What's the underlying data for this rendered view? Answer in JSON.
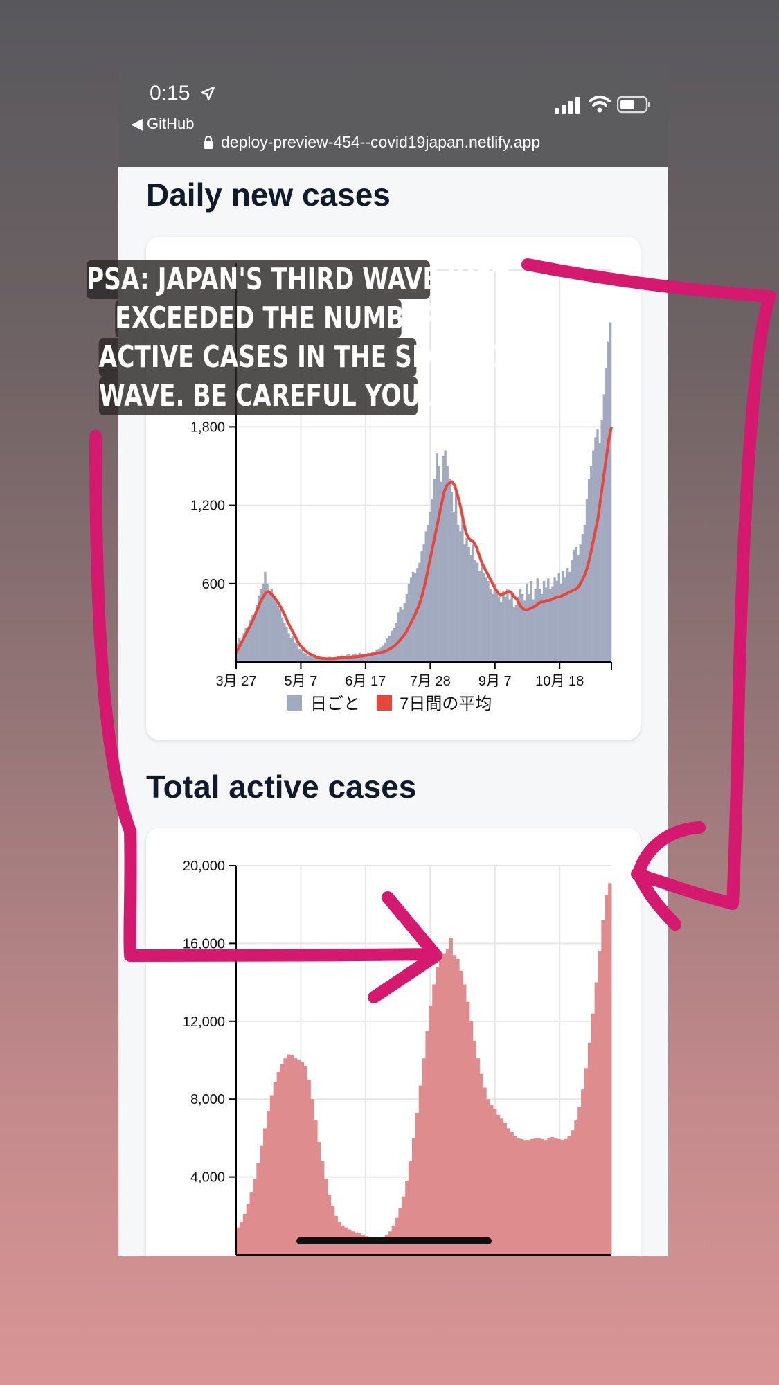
{
  "status_bar": {
    "time": "0:15",
    "back_label": "◀ GitHub",
    "url": "deploy-preview-454--covid19japan.netlify.app",
    "icons": [
      "location-arrow-icon",
      "signal-icon",
      "wifi-icon",
      "battery-icon",
      "lock-icon"
    ]
  },
  "sections": {
    "daily_title": "Daily new cases",
    "active_title": "Total active cases"
  },
  "psa": {
    "lines": [
      "PSA: JAPAN'S THIRD WAVE JUST",
      "EXCEEDED THE NUMBER OF",
      "ACTIVE CASES IN THE SECOND",
      "WAVE. BE CAREFUL YOU ALL."
    ]
  },
  "colors": {
    "bars_daily": "#a2aac0",
    "avg_line": "#e8453c",
    "active_area": "#df8c8e",
    "annotation": "#d4196f"
  },
  "chart_data": [
    {
      "type": "bar",
      "title": "",
      "xlabel": "",
      "ylabel": "",
      "ylim": [
        0,
        3000
      ],
      "y_ticks": [
        "600",
        "1,200",
        "1,800"
      ],
      "x_ticks": [
        "3月 27",
        "5月 7",
        "6月 17",
        "7月 28",
        "9月 7",
        "10月 18"
      ],
      "grid": true,
      "legend_position": "bottom",
      "series": [
        {
          "name": "日ごと",
          "values": [
            140,
            180,
            160,
            220,
            260,
            240,
            320,
            360,
            340,
            440,
            510,
            560,
            600,
            690,
            600,
            540,
            560,
            500,
            470,
            430,
            400,
            340,
            300,
            270,
            220,
            180,
            200,
            150,
            140,
            100,
            90,
            70,
            60,
            50,
            55,
            45,
            40,
            45,
            35,
            30,
            28,
            32,
            30,
            40,
            35,
            30,
            38,
            45,
            42,
            50,
            45,
            55,
            60,
            50,
            58,
            65,
            55,
            70,
            62,
            60,
            55,
            70,
            68,
            75,
            80,
            90,
            100,
            110,
            125,
            150,
            180,
            200,
            240,
            260,
            300,
            380,
            420,
            400,
            450,
            520,
            600,
            650,
            690,
            680,
            720,
            760,
            850,
            900,
            1000,
            1050,
            1150,
            1250,
            1400,
            1600,
            1500,
            1380,
            1580,
            1620,
            1500,
            1400,
            1300,
            1150,
            1300,
            1050,
            1000,
            1100,
            900,
            950,
            880,
            820,
            900,
            780,
            760,
            700,
            760,
            680,
            650,
            620,
            560,
            520,
            600,
            540,
            500,
            460,
            540,
            500,
            560,
            480,
            520,
            420,
            440,
            500,
            560,
            520,
            470,
            600,
            520,
            620,
            480,
            560,
            640,
            560,
            520,
            620,
            570,
            640,
            560,
            580,
            650,
            620,
            680,
            600,
            700,
            650,
            720,
            690,
            780,
            860,
            880,
            820,
            900,
            980,
            1050,
            1250,
            1400,
            1500,
            1620,
            1720,
            1780,
            1680,
            1850,
            2050,
            2250,
            2450,
            2600
          ]
        },
        {
          "name": "7日間の平均",
          "values": [
            70,
            110,
            150,
            190,
            230,
            270,
            310,
            360,
            410,
            460,
            500,
            530,
            540,
            520,
            500,
            470,
            440,
            400,
            360,
            310,
            270,
            230,
            190,
            150,
            120,
            100,
            80,
            65,
            55,
            45,
            35,
            30,
            28,
            26,
            25,
            25,
            26,
            28,
            30,
            32,
            33,
            35,
            37,
            38,
            40,
            42,
            44,
            46,
            50,
            54,
            58,
            62,
            66,
            70,
            75,
            80,
            90,
            100,
            115,
            130,
            150,
            175,
            200,
            230,
            270,
            310,
            350,
            400,
            450,
            520,
            600,
            700,
            800,
            900,
            1000,
            1100,
            1200,
            1300,
            1350,
            1370,
            1380,
            1350,
            1280,
            1200,
            1100,
            1000,
            950,
            930,
            920,
            880,
            820,
            760,
            720,
            680,
            640,
            600,
            560,
            530,
            510,
            520,
            530,
            540,
            530,
            500,
            480,
            440,
            410,
            400,
            400,
            410,
            420,
            430,
            450,
            460,
            460,
            470,
            470,
            480,
            490,
            500,
            500,
            510,
            520,
            530,
            540,
            550,
            560,
            580,
            620,
            660,
            720,
            800,
            900,
            1000,
            1100,
            1250,
            1400,
            1550,
            1700,
            1800
          ]
        }
      ]
    },
    {
      "type": "area",
      "title": "",
      "xlabel": "",
      "ylabel": "",
      "ylim": [
        0,
        20000
      ],
      "y_ticks": [
        "4,000",
        "8,000",
        "12,000",
        "16,000",
        "20,000"
      ],
      "grid": true,
      "series": [
        {
          "name": "",
          "values": [
            1400,
            1700,
            2100,
            2600,
            3200,
            3900,
            4700,
            5600,
            6500,
            7400,
            8200,
            8900,
            9400,
            9800,
            10100,
            10300,
            10250,
            10100,
            10000,
            9900,
            9700,
            9000,
            8000,
            6900,
            5800,
            4800,
            3900,
            3100,
            2500,
            2000,
            1700,
            1500,
            1400,
            1300,
            1200,
            1150,
            1100,
            1000,
            950,
            900,
            880,
            860,
            850,
            900,
            1000,
            1200,
            1500,
            1900,
            2400,
            3000,
            3800,
            4800,
            6000,
            7300,
            8700,
            10100,
            11500,
            12800,
            13900,
            14800,
            15300,
            15500,
            15700,
            16300,
            15400,
            15200,
            14600,
            13900,
            13000,
            12000,
            11000,
            10100,
            9300,
            8600,
            8000,
            7700,
            7500,
            7200,
            7000,
            6800,
            6500,
            6300,
            6100,
            6000,
            5950,
            5900,
            5900,
            5950,
            6000,
            6000,
            5950,
            5900,
            6000,
            6050,
            6000,
            5950,
            5900,
            5950,
            6100,
            6400,
            6900,
            7600,
            8500,
            9600,
            10900,
            12400,
            14000,
            15600,
            17200,
            18500,
            19100
          ]
        }
      ]
    }
  ]
}
